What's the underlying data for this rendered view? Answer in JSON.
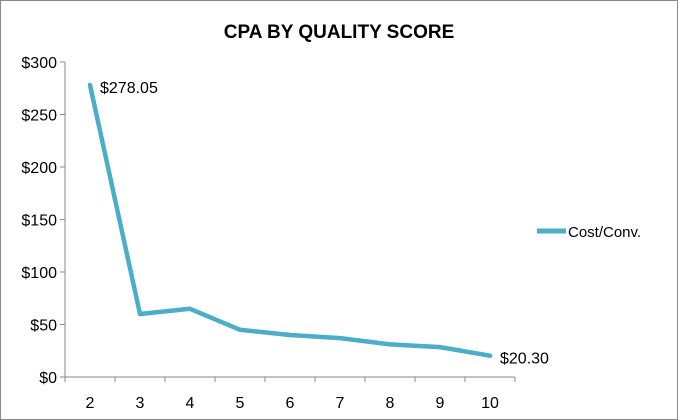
{
  "chart_data": {
    "type": "line",
    "title": "CPA BY QUALITY SCORE",
    "xlabel": "",
    "ylabel": "",
    "x": [
      "2",
      "3",
      "4",
      "5",
      "6",
      "7",
      "8",
      "9",
      "10"
    ],
    "series": [
      {
        "name": "Cost/Conv.",
        "color": "#4aaec8",
        "values": [
          278.05,
          60,
          65,
          45,
          40,
          37,
          31,
          28.5,
          20.3
        ]
      }
    ],
    "y_ticks": [
      "$0",
      "$50",
      "$100",
      "$150",
      "$200",
      "$250",
      "$300"
    ],
    "ylim": [
      0,
      300
    ],
    "data_labels": [
      {
        "index": 0,
        "text": "$278.05"
      },
      {
        "index": 8,
        "text": "$20.30"
      }
    ],
    "grid": false,
    "legend_position": "right"
  }
}
